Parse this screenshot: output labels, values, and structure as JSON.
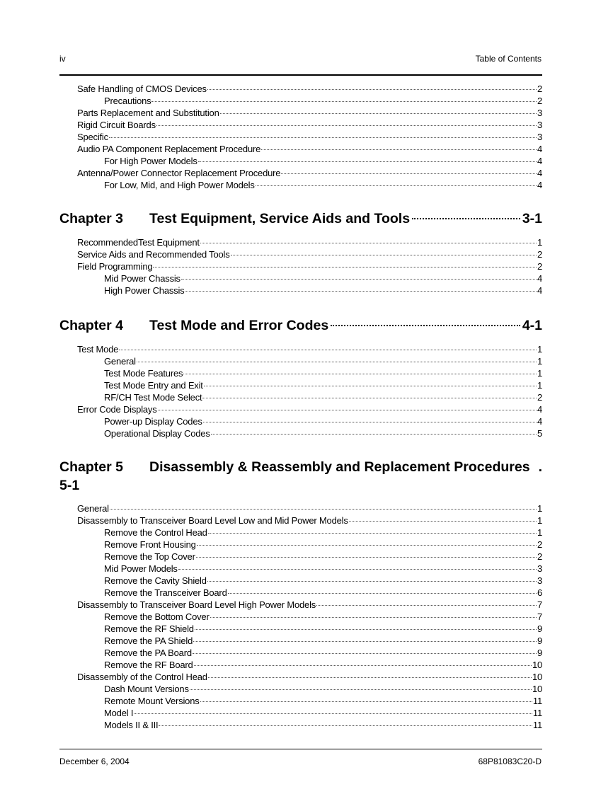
{
  "header": {
    "page_number": "iv",
    "section": "Table of Contents"
  },
  "footer": {
    "date": "December 6, 2004",
    "doc_number": "68P81083C20-D"
  },
  "blocks": [
    {
      "entries": [
        {
          "level": 1,
          "title": "Safe Handling of CMOS Devices",
          "page": "2"
        },
        {
          "level": 2,
          "title": "Precautions",
          "page": "2"
        },
        {
          "level": 1,
          "title": "Parts Replacement and Substitution",
          "page": "3"
        },
        {
          "level": 1,
          "title": "Rigid Circuit Boards",
          "page": "3"
        },
        {
          "level": 1,
          "title": "Specific",
          "page": "3"
        },
        {
          "level": 1,
          "title": "Audio PA Component Replacement Procedure",
          "page": "4"
        },
        {
          "level": 2,
          "title": "For High Power Models",
          "page": "4"
        },
        {
          "level": 1,
          "title": "Antenna/Power Connector Replacement Procedure",
          "page": "4"
        },
        {
          "level": 2,
          "title": "For Low, Mid, and High Power Models",
          "page": "4"
        }
      ]
    },
    {
      "chapter": {
        "label": "Chapter 3",
        "title": "Test Equipment, Service Aids and Tools",
        "page": "3-1"
      },
      "entries": [
        {
          "level": 1,
          "title": "RecommendedTest Equipment",
          "page": "1"
        },
        {
          "level": 1,
          "title": "Service Aids and Recommended Tools",
          "page": "2"
        },
        {
          "level": 1,
          "title": "Field Programming",
          "page": "2"
        },
        {
          "level": 2,
          "title": "Mid Power Chassis",
          "page": "4"
        },
        {
          "level": 2,
          "title": "High Power Chassis",
          "page": "4"
        }
      ]
    },
    {
      "chapter": {
        "label": "Chapter 4",
        "title": "Test Mode and Error Codes",
        "page": "4-1"
      },
      "entries": [
        {
          "level": 1,
          "title": "Test Mode",
          "page": "1"
        },
        {
          "level": 2,
          "title": "General",
          "page": "1"
        },
        {
          "level": 2,
          "title": "Test Mode Features",
          "page": "1"
        },
        {
          "level": 2,
          "title": "Test Mode Entry and Exit",
          "page": "1"
        },
        {
          "level": 2,
          "title": "RF/CH Test Mode Select",
          "page": "2"
        },
        {
          "level": 1,
          "title": "Error Code Displays",
          "page": "4"
        },
        {
          "level": 2,
          "title": "Power-up Display Codes",
          "page": "4"
        },
        {
          "level": 2,
          "title": "Operational Display Codes",
          "page": "5"
        }
      ]
    },
    {
      "chapter": {
        "label": "Chapter 5",
        "title": "Disassembly & Reassembly and Replacement Procedures",
        "page": "5-1"
      },
      "entries": [
        {
          "level": 1,
          "title": "General",
          "page": "1"
        },
        {
          "level": 1,
          "title": "Disassembly to Transceiver Board Level Low and Mid Power Models",
          "page": "1"
        },
        {
          "level": 2,
          "title": "Remove the Control Head",
          "page": "1"
        },
        {
          "level": 2,
          "title": "Remove Front Housing",
          "page": "2"
        },
        {
          "level": 2,
          "title": "Remove the Top Cover",
          "page": "2"
        },
        {
          "level": 2,
          "title": "Mid Power Models",
          "page": "3"
        },
        {
          "level": 2,
          "title": "Remove the Cavity Shield",
          "page": "3"
        },
        {
          "level": 2,
          "title": "Remove the Transceiver Board",
          "page": "6"
        },
        {
          "level": 1,
          "title": "Disassembly to Transceiver Board Level High Power Models",
          "page": "7"
        },
        {
          "level": 2,
          "title": "Remove the Bottom Cover",
          "page": "7"
        },
        {
          "level": 2,
          "title": "Remove the RF Shield",
          "page": "9"
        },
        {
          "level": 2,
          "title": "Remove the PA Shield",
          "page": "9"
        },
        {
          "level": 2,
          "title": "Remove the PA Board",
          "page": "9"
        },
        {
          "level": 2,
          "title": "Remove the RF Board",
          "page": "10"
        },
        {
          "level": 1,
          "title": "Disassembly of the Control Head",
          "page": "10"
        },
        {
          "level": 2,
          "title": "Dash Mount Versions",
          "page": "10"
        },
        {
          "level": 2,
          "title": "Remote Mount Versions",
          "page": "11"
        },
        {
          "level": 2,
          "title": "Model I",
          "page": "11"
        },
        {
          "level": 2,
          "title": "Models II & III",
          "page": "11"
        }
      ]
    }
  ]
}
